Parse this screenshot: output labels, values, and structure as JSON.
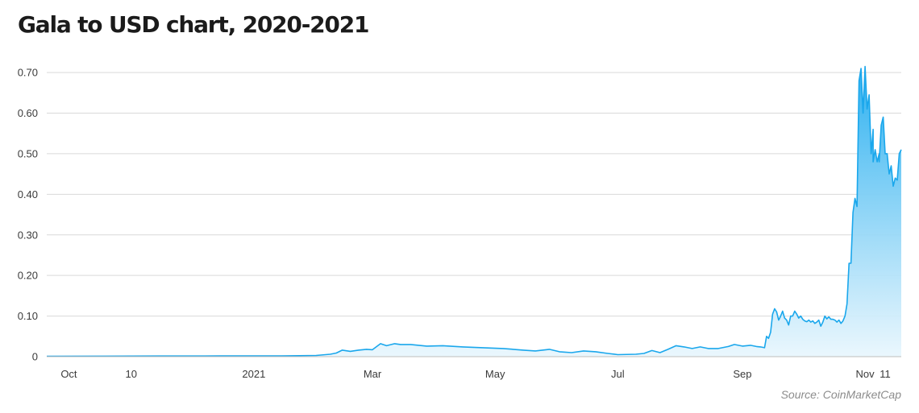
{
  "title": "Gala to USD chart, 2020-2021",
  "source": "Source: CoinMarketCap",
  "colors": {
    "line": "#1aa7ec",
    "fill_top": "#2bb0f0",
    "fill_bottom": "#e8f6fd",
    "grid": "#d9d9d9"
  },
  "chart_data": {
    "type": "area",
    "title": "Gala to USD chart, 2020-2021",
    "xlabel": "",
    "ylabel": "",
    "ylim": [
      0,
      0.72
    ],
    "xlim": [
      "2020-09-20",
      "2021-11-19"
    ],
    "grid": true,
    "y_ticks": [
      {
        "value": 0,
        "label": "0"
      },
      {
        "value": 0.1,
        "label": "0.10"
      },
      {
        "value": 0.2,
        "label": "0.20"
      },
      {
        "value": 0.3,
        "label": "0.30"
      },
      {
        "value": 0.4,
        "label": "0.40"
      },
      {
        "value": 0.5,
        "label": "0.50"
      },
      {
        "value": 0.6,
        "label": "0.60"
      },
      {
        "value": 0.7,
        "label": "0.70"
      }
    ],
    "x_ticks": [
      {
        "date": "2020-10-01",
        "label": "Oct"
      },
      {
        "date": "2020-11-01",
        "label": "10"
      },
      {
        "date": "2021-01-01",
        "label": "2021"
      },
      {
        "date": "2021-03-01",
        "label": "Mar"
      },
      {
        "date": "2021-05-01",
        "label": "May"
      },
      {
        "date": "2021-07-01",
        "label": "Jul"
      },
      {
        "date": "2021-09-01",
        "label": "Sep"
      },
      {
        "date": "2021-11-01",
        "label": "Nov"
      },
      {
        "date": "2021-11-11",
        "label": "11"
      }
    ],
    "series": [
      {
        "x": [
          "2020-09-20",
          "2020-10-15",
          "2020-11-15",
          "2020-12-15",
          "2021-01-15",
          "2021-02-01",
          "2021-02-08",
          "2021-02-11",
          "2021-02-14",
          "2021-02-18",
          "2021-02-22",
          "2021-02-26",
          "2021-03-01",
          "2021-03-05",
          "2021-03-08",
          "2021-03-12",
          "2021-03-15",
          "2021-03-20",
          "2021-03-28",
          "2021-04-05",
          "2021-04-15",
          "2021-04-25",
          "2021-05-05",
          "2021-05-15",
          "2021-05-21",
          "2021-05-28",
          "2021-06-02",
          "2021-06-08",
          "2021-06-14",
          "2021-06-20",
          "2021-06-26",
          "2021-07-01",
          "2021-07-10",
          "2021-07-14",
          "2021-07-18",
          "2021-07-22",
          "2021-07-26",
          "2021-07-30",
          "2021-08-03",
          "2021-08-07",
          "2021-08-11",
          "2021-08-15",
          "2021-08-20",
          "2021-08-25",
          "2021-08-28",
          "2021-09-01",
          "2021-09-05",
          "2021-09-08",
          "2021-09-10",
          "2021-09-12",
          "2021-09-13",
          "2021-09-14",
          "2021-09-15",
          "2021-09-16",
          "2021-09-17",
          "2021-09-18",
          "2021-09-19",
          "2021-09-20",
          "2021-09-21",
          "2021-09-22",
          "2021-09-23",
          "2021-09-24",
          "2021-09-25",
          "2021-09-26",
          "2021-09-27",
          "2021-09-28",
          "2021-09-29",
          "2021-09-30",
          "2021-10-01",
          "2021-10-02",
          "2021-10-03",
          "2021-10-04",
          "2021-10-05",
          "2021-10-06",
          "2021-10-07",
          "2021-10-08",
          "2021-10-09",
          "2021-10-10",
          "2021-10-11",
          "2021-10-12",
          "2021-10-13",
          "2021-10-14",
          "2021-10-15",
          "2021-10-16",
          "2021-10-17",
          "2021-10-18",
          "2021-10-19",
          "2021-10-20",
          "2021-10-21",
          "2021-10-22",
          "2021-10-23",
          "2021-10-24",
          "2021-10-25",
          "2021-10-26",
          "2021-10-27",
          "2021-10-28",
          "2021-10-29",
          "2021-10-30",
          "2021-10-31",
          "2021-11-01",
          "2021-11-02",
          "2021-11-03",
          "2021-11-04",
          "2021-11-05",
          "2021-11-05",
          "2021-11-06",
          "2021-11-07",
          "2021-11-08",
          "2021-11-08",
          "2021-11-09",
          "2021-11-10",
          "2021-11-11",
          "2021-11-12",
          "2021-11-13",
          "2021-11-14",
          "2021-11-15",
          "2021-11-16",
          "2021-11-17",
          "2021-11-18",
          "2021-11-19"
        ],
        "y": [
          0.001,
          0.0012,
          0.0015,
          0.0018,
          0.002,
          0.003,
          0.006,
          0.009,
          0.016,
          0.013,
          0.016,
          0.018,
          0.017,
          0.032,
          0.027,
          0.032,
          0.03,
          0.03,
          0.026,
          0.027,
          0.024,
          0.022,
          0.02,
          0.016,
          0.014,
          0.018,
          0.012,
          0.01,
          0.014,
          0.012,
          0.008,
          0.005,
          0.006,
          0.008,
          0.015,
          0.01,
          0.018,
          0.027,
          0.024,
          0.02,
          0.024,
          0.02,
          0.02,
          0.025,
          0.03,
          0.026,
          0.028,
          0.025,
          0.024,
          0.022,
          0.05,
          0.045,
          0.06,
          0.105,
          0.118,
          0.11,
          0.09,
          0.1,
          0.112,
          0.095,
          0.09,
          0.078,
          0.1,
          0.1,
          0.112,
          0.105,
          0.095,
          0.1,
          0.092,
          0.088,
          0.086,
          0.09,
          0.085,
          0.088,
          0.082,
          0.085,
          0.09,
          0.075,
          0.085,
          0.1,
          0.093,
          0.098,
          0.092,
          0.092,
          0.09,
          0.085,
          0.09,
          0.082,
          0.088,
          0.1,
          0.13,
          0.23,
          0.23,
          0.355,
          0.39,
          0.37,
          0.68,
          0.71,
          0.6,
          0.715,
          0.61,
          0.645,
          0.5,
          0.56,
          0.48,
          0.51,
          0.48,
          0.5,
          0.48,
          0.57,
          0.59,
          0.5,
          0.5,
          0.45,
          0.47,
          0.42,
          0.44,
          0.435,
          0.5,
          0.51
        ]
      }
    ]
  }
}
